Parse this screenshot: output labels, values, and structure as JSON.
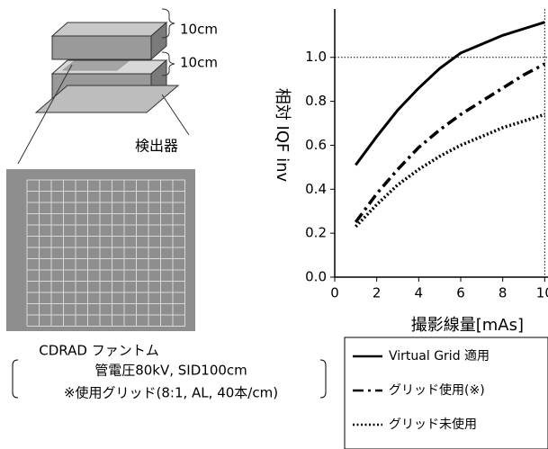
{
  "diagram": {
    "thickness_top": "10cm",
    "thickness_bottom": "10cm",
    "detector": "検出器",
    "phantom_caption": "CDRAD ファントム",
    "condition_line1": "管電圧80kV, SID100cm",
    "condition_line2": "※使用グリッド(8:1, AL, 40本/cm)"
  },
  "chart_data": {
    "type": "line",
    "x_label": "撮影線量[mAs]",
    "y_label": "相対 IQF inv",
    "x": [
      1,
      2,
      3,
      4,
      5,
      6,
      7,
      8,
      9,
      10
    ],
    "series": [
      {
        "name": "Virtual Grid 適用",
        "color": "#000000",
        "style": "solid",
        "values": [
          0.51,
          0.64,
          0.76,
          0.86,
          0.95,
          1.02,
          1.06,
          1.1,
          1.13,
          1.16
        ]
      },
      {
        "name": "グリッド使用(※)",
        "color": "#000000",
        "style": "dashdot",
        "values": [
          0.25,
          0.38,
          0.49,
          0.59,
          0.67,
          0.74,
          0.8,
          0.86,
          0.92,
          0.97
        ]
      },
      {
        "name": "グリッド未使用",
        "color": "#000000",
        "style": "dotted",
        "values": [
          0.23,
          0.33,
          0.42,
          0.49,
          0.55,
          0.6,
          0.64,
          0.68,
          0.71,
          0.74
        ]
      }
    ],
    "xlim": [
      0,
      10.8
    ],
    "xticks": [
      0,
      2,
      4,
      6,
      8,
      10
    ],
    "ylim": [
      0,
      1.22
    ],
    "yticks": [
      {
        "value": 0,
        "label": "0.0"
      },
      0.2,
      0.4,
      0.6,
      0.8,
      {
        "value": 1,
        "label": "1.0"
      }
    ],
    "reference_y": 1,
    "reference_x": 10
  }
}
